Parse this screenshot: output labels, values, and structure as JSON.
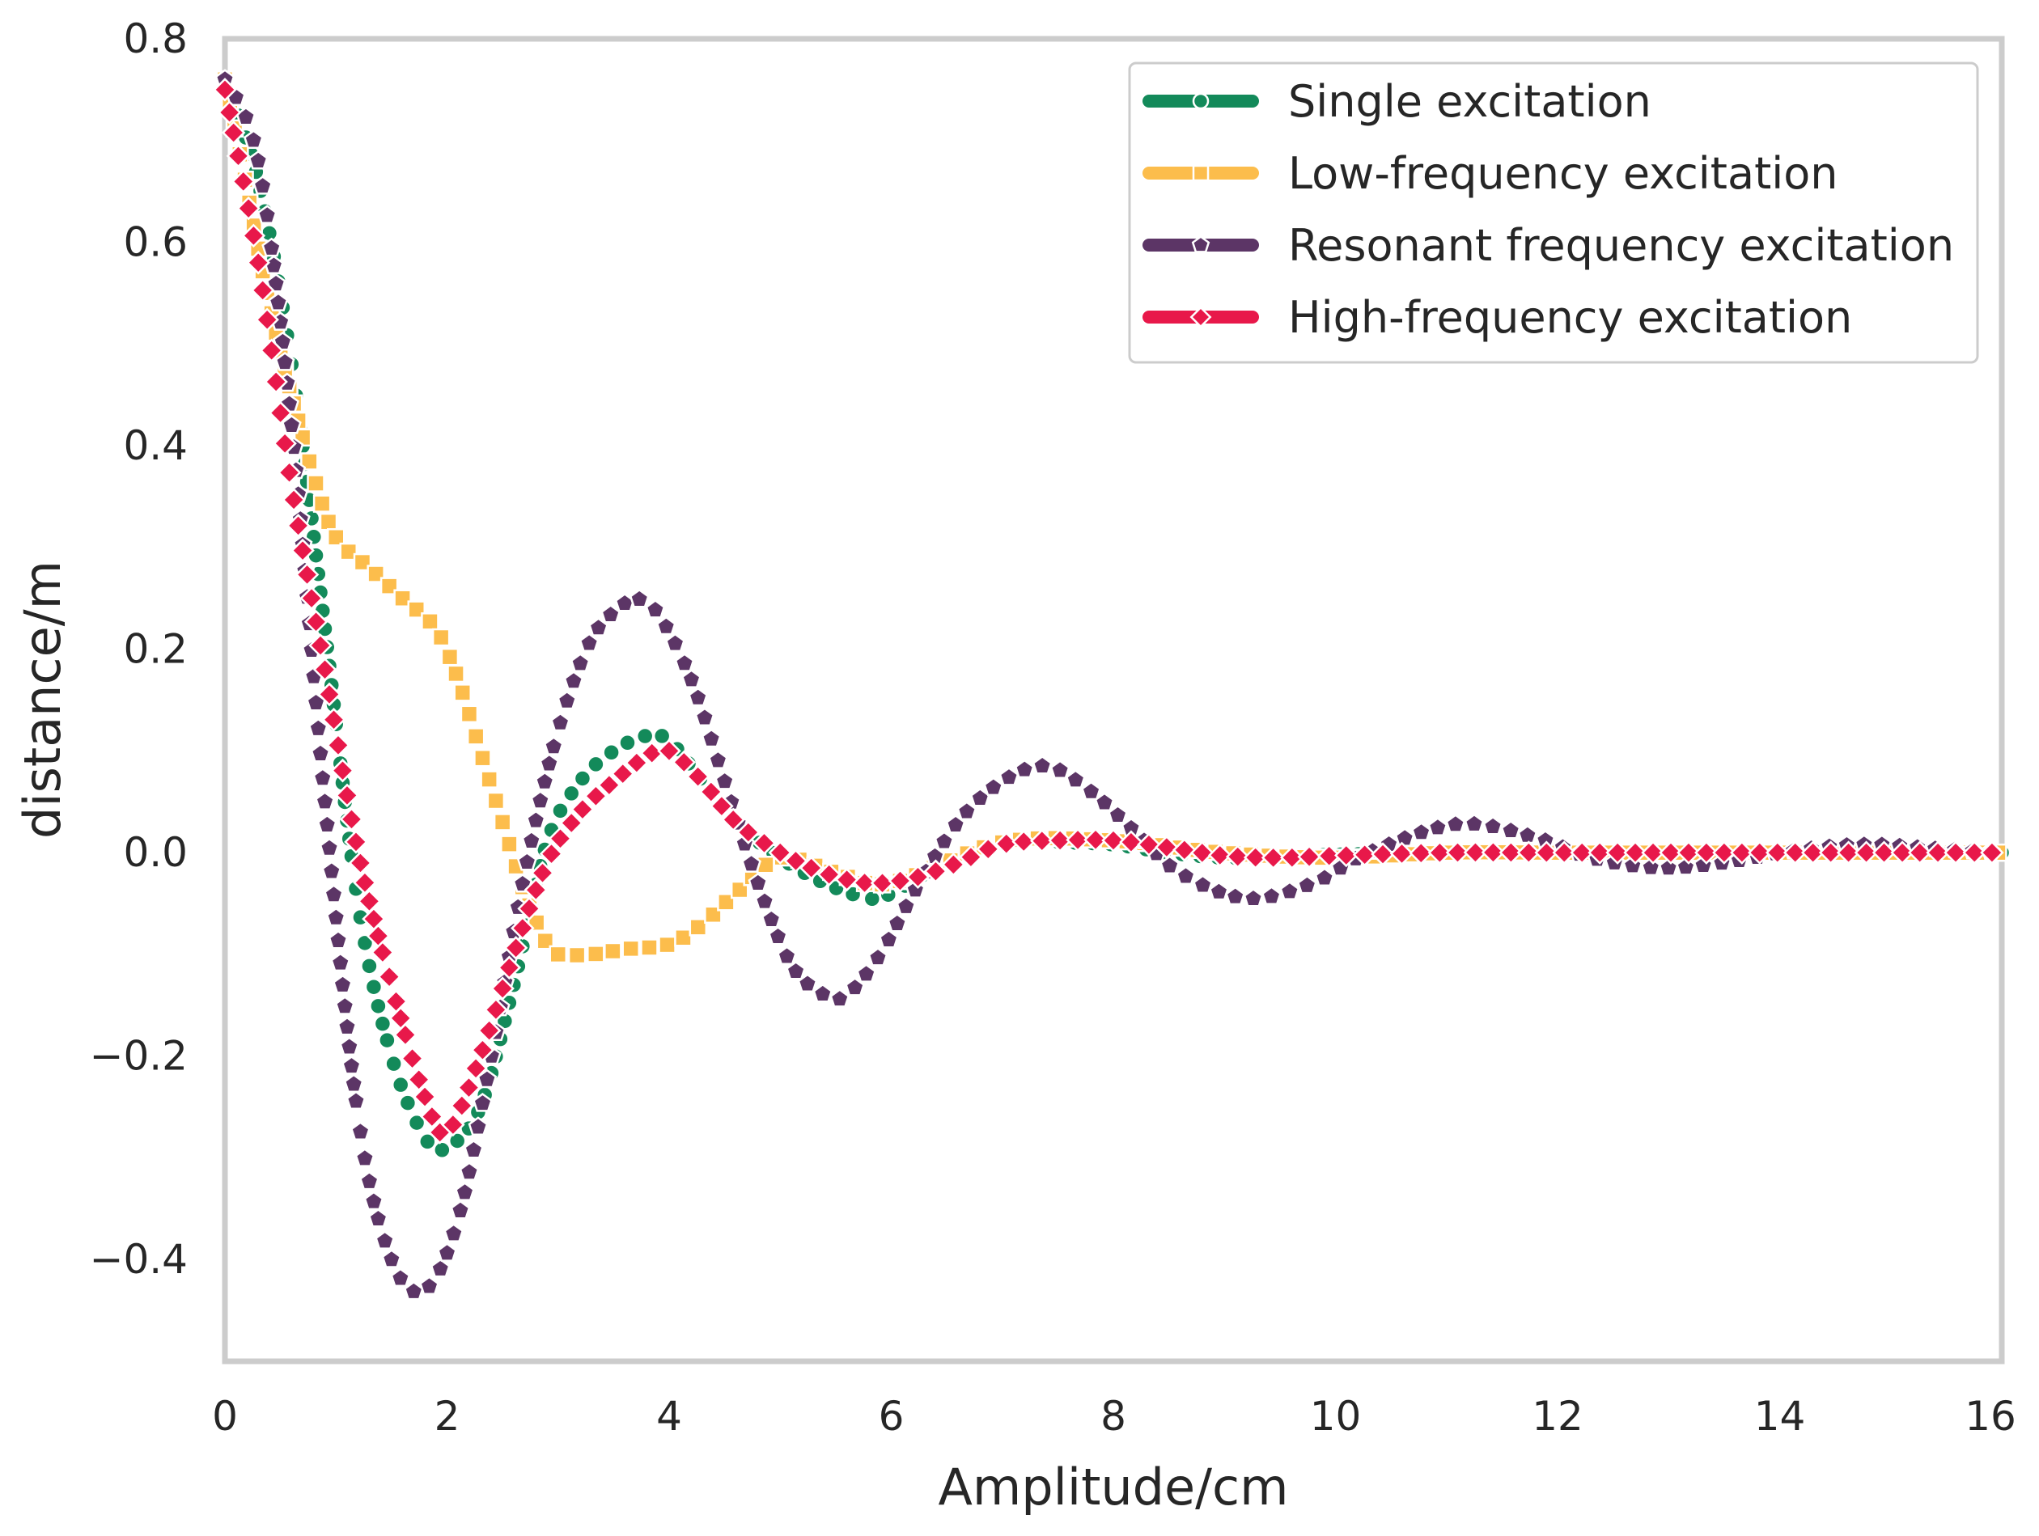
{
  "chart_data": {
    "type": "line",
    "title": "",
    "xlabel": "Amplitude/cm",
    "ylabel": "distance/m",
    "xlim": [
      0,
      16
    ],
    "ylim": [
      -0.5,
      0.8
    ],
    "xticks": [
      0,
      2,
      4,
      6,
      8,
      10,
      12,
      14,
      16
    ],
    "yticks": [
      0.8,
      0.6,
      0.4,
      0.2,
      0.0,
      -0.2,
      -0.4
    ],
    "xtick_labels": [
      "0",
      "2",
      "4",
      "6",
      "8",
      "10",
      "12",
      "14",
      "16"
    ],
    "ytick_labels": [
      "0.8",
      "0.6",
      "0.4",
      "0.2",
      "0.0",
      "−0.2",
      "−0.4"
    ],
    "grid": false,
    "legend_position": "top-right",
    "series": [
      {
        "name": "Single excitation",
        "color": "#138a5a",
        "marker": "circle",
        "x": [
          0,
          0.3,
          0.6,
          0.9,
          1.2,
          1.5,
          1.8,
          2.0,
          2.3,
          2.6,
          2.9,
          3.2,
          3.5,
          3.8,
          4.0,
          4.3,
          4.6,
          5.0,
          5.4,
          5.8,
          6.0,
          6.4,
          6.8,
          7.2,
          7.6,
          8.0,
          8.5,
          9.0,
          9.5,
          10.0,
          11,
          12,
          13,
          14,
          15,
          16
        ],
        "y": [
          0.76,
          0.66,
          0.48,
          0.22,
          -0.05,
          -0.2,
          -0.28,
          -0.29,
          -0.25,
          -0.13,
          0.01,
          0.07,
          0.1,
          0.115,
          0.11,
          0.07,
          0.03,
          -0.005,
          -0.03,
          -0.045,
          -0.04,
          -0.015,
          0.005,
          0.012,
          0.01,
          0.008,
          0.0,
          -0.005,
          -0.004,
          -0.002,
          0.0,
          0.0,
          0.0,
          0.0,
          0.0,
          0.0
        ]
      },
      {
        "name": "Low-frequency excitation",
        "color": "#fcbd4c",
        "marker": "square",
        "x": [
          0,
          0.2,
          0.4,
          0.6,
          0.8,
          1.0,
          1.3,
          1.6,
          1.9,
          2.1,
          2.3,
          2.5,
          2.7,
          2.9,
          3.0,
          3.3,
          3.6,
          4.0,
          4.3,
          4.6,
          5.0,
          5.5,
          6.0,
          7.0,
          8.0,
          9.0,
          10.0,
          11,
          12,
          13,
          14,
          15,
          16
        ],
        "y": [
          0.76,
          0.65,
          0.54,
          0.45,
          0.37,
          0.31,
          0.28,
          0.25,
          0.22,
          0.17,
          0.1,
          0.03,
          -0.04,
          -0.09,
          -0.1,
          -0.1,
          -0.095,
          -0.09,
          -0.07,
          -0.04,
          -0.005,
          -0.02,
          -0.03,
          0.01,
          0.012,
          0.0,
          -0.005,
          0.0,
          0.0,
          0.0,
          0.0,
          0.0,
          0.0
        ]
      },
      {
        "name": "Resonant frequency excitation",
        "color": "#5c3566",
        "marker": "pentagon",
        "x": [
          0,
          0.3,
          0.6,
          0.9,
          1.2,
          1.5,
          1.8,
          2.1,
          2.4,
          2.7,
          3.0,
          3.3,
          3.6,
          3.7,
          3.9,
          4.2,
          4.5,
          4.8,
          5.1,
          5.4,
          5.6,
          5.9,
          6.2,
          6.6,
          7.0,
          7.4,
          7.8,
          8.2,
          8.6,
          9.2,
          9.8,
          10.3,
          11.1,
          11.8,
          12.3,
          12.9,
          13.5,
          14.2,
          14.8,
          15.4,
          16
        ],
        "y": [
          0.76,
          0.68,
          0.42,
          0.05,
          -0.26,
          -0.4,
          -0.43,
          -0.36,
          -0.2,
          -0.02,
          0.12,
          0.21,
          0.245,
          0.25,
          0.235,
          0.17,
          0.07,
          -0.03,
          -0.11,
          -0.14,
          -0.14,
          -0.1,
          -0.04,
          0.03,
          0.07,
          0.085,
          0.06,
          0.02,
          -0.02,
          -0.045,
          -0.03,
          0.0,
          0.028,
          0.015,
          -0.005,
          -0.015,
          -0.01,
          0.003,
          0.008,
          0.004,
          0.0
        ]
      },
      {
        "name": "High-frequency excitation",
        "color": "#e8184a",
        "marker": "diamond",
        "x": [
          0,
          0.3,
          0.6,
          0.9,
          1.2,
          1.5,
          1.8,
          2.0,
          2.3,
          2.6,
          2.9,
          3.2,
          3.5,
          3.8,
          4.0,
          4.3,
          4.6,
          5.0,
          5.4,
          5.8,
          6.2,
          6.6,
          7.0,
          7.5,
          8.0,
          8.5,
          9.0,
          9.5,
          10.0,
          11,
          12,
          13,
          14,
          15,
          16
        ],
        "y": [
          0.75,
          0.58,
          0.36,
          0.18,
          0.0,
          -0.13,
          -0.24,
          -0.275,
          -0.2,
          -0.1,
          -0.01,
          0.04,
          0.07,
          0.095,
          0.1,
          0.07,
          0.03,
          0.0,
          -0.02,
          -0.03,
          -0.025,
          -0.01,
          0.008,
          0.012,
          0.012,
          0.005,
          -0.003,
          -0.005,
          -0.003,
          0.0,
          0.0,
          0.0,
          0.0,
          0.0,
          0.0
        ]
      }
    ]
  }
}
